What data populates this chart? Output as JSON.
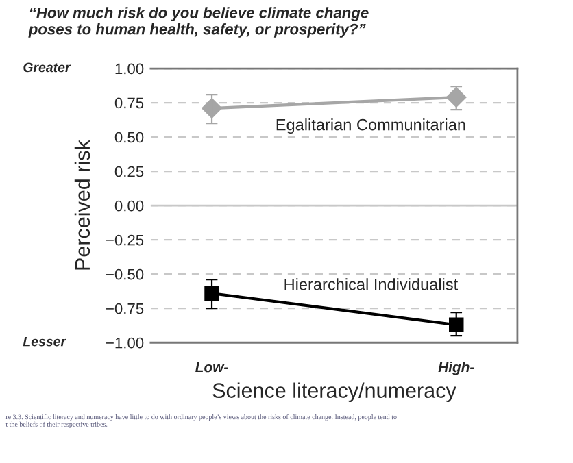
{
  "chart_data": {
    "type": "line",
    "title": "“How much risk do you believe climate change\nposes to human health, safety, or prosperity?”",
    "xlabel": "Science literacy/numeracy",
    "ylabel": "Perceived risk",
    "categories": [
      "Low-",
      "High-"
    ],
    "series": [
      {
        "name": "Egalitarian Communitarian",
        "color": "#a6a6a6",
        "marker": "diamond",
        "values": [
          0.71,
          0.79
        ],
        "errors": [
          [
            0.6,
            0.81
          ],
          [
            0.7,
            0.87
          ]
        ]
      },
      {
        "name": "Hierarchical Individualist",
        "color": "#000000",
        "marker": "square",
        "values": [
          -0.64,
          -0.87
        ],
        "errors": [
          [
            -0.75,
            -0.54
          ],
          [
            -0.95,
            -0.78
          ]
        ]
      }
    ],
    "ylim": [
      -1.0,
      1.0
    ],
    "yticks": [
      {
        "value": 1.0,
        "label": "1.00"
      },
      {
        "value": 0.75,
        "label": "0.75"
      },
      {
        "value": 0.5,
        "label": "0.50"
      },
      {
        "value": 0.25,
        "label": "0.25"
      },
      {
        "value": 0,
        "label": "0.00"
      },
      {
        "value": -0.25,
        "label": "−0.25"
      },
      {
        "value": -0.5,
        "label": "−0.50"
      },
      {
        "value": -0.75,
        "label": "−0.75"
      },
      {
        "value": -1.0,
        "label": "−1.00"
      }
    ],
    "grid": "y",
    "ref_lines": [
      {
        "axis": "y",
        "value": 0,
        "color": "#c8c8c8",
        "line_style": "solid"
      }
    ],
    "annotations": [
      "Greater",
      "Lesser",
      "re 3.3. Scientific literacy and numeracy have little to do with ordinary people’s views about the risks of climate change. Instead, people tend to\nt the beliefs of their respective tribes."
    ]
  }
}
